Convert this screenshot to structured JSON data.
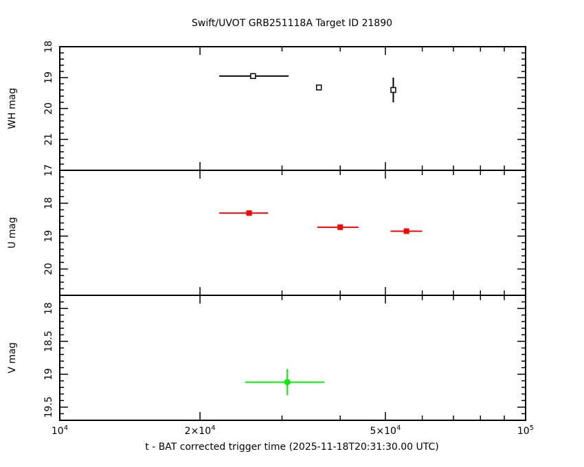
{
  "chart_data": {
    "type": "scatter",
    "title": "Swift/UVOT GRB251118A Target ID 21890",
    "xlabel": "t - BAT corrected trigger time (2025-11-18T20:31:30.00 UTC)",
    "xscale": "log",
    "xlim": [
      10000,
      100000
    ],
    "x_ticks": [
      {
        "value": 10000,
        "label": "10",
        "exp": "4"
      },
      {
        "value": 20000,
        "label": "2×10",
        "exp": "4"
      },
      {
        "value": 50000,
        "label": "5×10",
        "exp": "4"
      },
      {
        "value": 100000,
        "label": "10",
        "exp": "5"
      }
    ],
    "panels": [
      {
        "ylabel": "WH mag",
        "ylim": [
          18.0,
          22.0
        ],
        "y_inverted": true,
        "y_ticks": [
          18,
          19,
          20,
          21
        ],
        "color": "#000000",
        "marker": "open-square",
        "points": [
          {
            "x": 26000,
            "x_lo": 22000,
            "x_hi": 31000,
            "y": 18.95,
            "y_err": 0.04
          },
          {
            "x": 36000,
            "x_lo": 35500,
            "x_hi": 36500,
            "y": 19.32,
            "y_err": 0.08
          },
          {
            "x": 52000,
            "x_lo": 51700,
            "x_hi": 52300,
            "y": 19.4,
            "y_err": 0.4
          }
        ]
      },
      {
        "ylabel": "U mag",
        "ylim": [
          17.0,
          20.8
        ],
        "y_inverted": true,
        "y_ticks": [
          17,
          18,
          19,
          20
        ],
        "color": "#ff0000",
        "marker": "filled-square",
        "points": [
          {
            "x": 25500,
            "x_lo": 22000,
            "x_hi": 28000,
            "y": 18.3,
            "y_err": 0.04
          },
          {
            "x": 40000,
            "x_lo": 35700,
            "x_hi": 43800,
            "y": 18.73,
            "y_err": 0.04
          },
          {
            "x": 55500,
            "x_lo": 51300,
            "x_hi": 60000,
            "y": 18.85,
            "y_err": 0.04
          }
        ]
      },
      {
        "ylabel": "V mag",
        "ylim": [
          17.8,
          19.7
        ],
        "y_inverted": true,
        "y_ticks": [
          18,
          18.5,
          19,
          19.5
        ],
        "color": "#00ee00",
        "marker": "filled-circle",
        "points": [
          {
            "x": 30800,
            "x_lo": 25000,
            "x_hi": 37000,
            "y": 19.12,
            "y_err": 0.2
          }
        ]
      }
    ]
  }
}
